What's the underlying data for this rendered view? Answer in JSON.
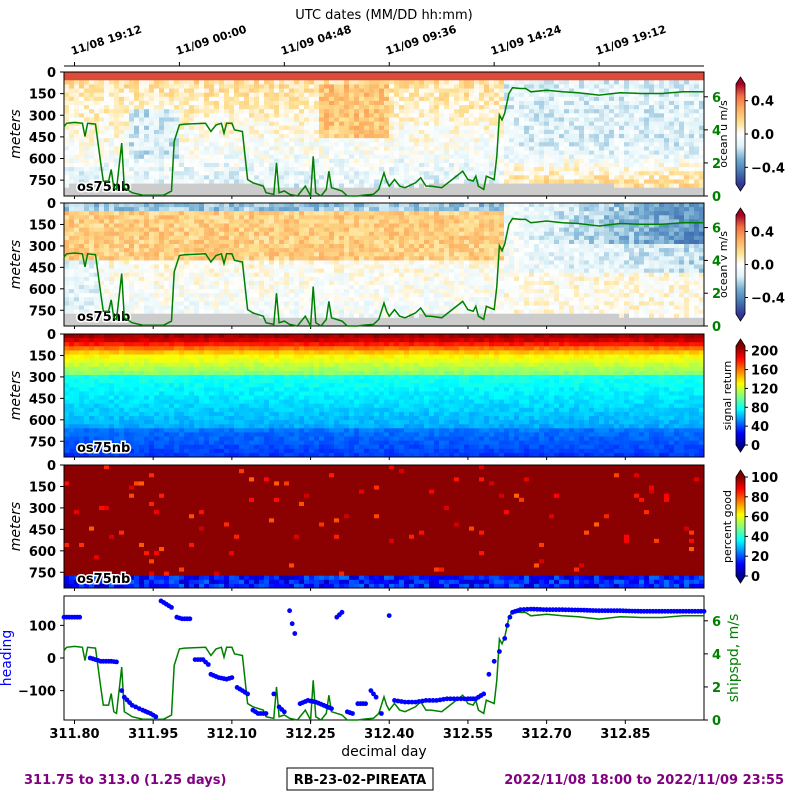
{
  "colors": {
    "purple": "#800080",
    "green": "#008000",
    "blue": "#0000ff",
    "gray": "#cccccc"
  },
  "footer": {
    "left_text": "311.75 to 313.0 (1.25 days)",
    "center_text": "RB-23-02-PIREATA",
    "right_text": "2022/11/08 18:00 to 2022/11/09 23:55"
  },
  "chart_data": {
    "type": "heatmap",
    "top_axis": {
      "title": "UTC dates (MM/DD hh:mm)",
      "ticks": [
        {
          "x": 311.8,
          "label": "11/08 19:12"
        },
        {
          "x": 312.0,
          "label": "11/09 00:00"
        },
        {
          "x": 312.2,
          "label": "11/09 04:48"
        },
        {
          "x": 312.4,
          "label": "11/09 09:36"
        },
        {
          "x": 312.6,
          "label": "11/09 14:24"
        },
        {
          "x": 312.8,
          "label": "11/09 19:12"
        }
      ]
    },
    "x_axis": {
      "label": "decimal day",
      "range": [
        311.78,
        313.0
      ],
      "ticks": [
        {
          "x": 311.8,
          "label": "311.80"
        },
        {
          "x": 311.95,
          "label": "311.95"
        },
        {
          "x": 312.1,
          "label": "312.10"
        },
        {
          "x": 312.25,
          "label": "312.25"
        },
        {
          "x": 312.4,
          "label": "312.40"
        },
        {
          "x": 312.55,
          "label": "312.55"
        },
        {
          "x": 312.7,
          "label": "312.70"
        },
        {
          "x": 312.85,
          "label": "312.85"
        }
      ]
    },
    "depth_axis": {
      "label": "meters",
      "range": [
        0,
        860
      ],
      "ticks": [
        {
          "v": 0,
          "label": "0"
        },
        {
          "v": 150,
          "label": "150"
        },
        {
          "v": 300,
          "label": "300"
        },
        {
          "v": 450,
          "label": "450"
        },
        {
          "v": 600,
          "label": "600"
        },
        {
          "v": 750,
          "label": "750"
        }
      ]
    },
    "instrument_label": "os75nb",
    "ship_speed_overlay": {
      "units": "m/s",
      "range": [
        0,
        7.5
      ],
      "points": [
        [
          311.78,
          4.2
        ],
        [
          311.785,
          4.4
        ],
        [
          311.8,
          4.45
        ],
        [
          311.815,
          4.4
        ],
        [
          311.82,
          3.6
        ],
        [
          311.825,
          4.4
        ],
        [
          311.84,
          4.35
        ],
        [
          311.85,
          2.0
        ],
        [
          311.855,
          0.9
        ],
        [
          311.865,
          0.9
        ],
        [
          311.87,
          1.6
        ],
        [
          311.875,
          0.5
        ],
        [
          311.88,
          0.4
        ],
        [
          311.89,
          3.2
        ],
        [
          311.895,
          0.5
        ],
        [
          311.91,
          0.2
        ],
        [
          311.93,
          0.05
        ],
        [
          311.97,
          0.05
        ],
        [
          311.985,
          0.3
        ],
        [
          311.99,
          3.3
        ],
        [
          312.0,
          4.3
        ],
        [
          312.01,
          4.35
        ],
        [
          312.05,
          4.4
        ],
        [
          312.06,
          3.9
        ],
        [
          312.07,
          4.3
        ],
        [
          312.08,
          4.4
        ],
        [
          312.085,
          3.8
        ],
        [
          312.09,
          4.4
        ],
        [
          312.1,
          4.4
        ],
        [
          312.105,
          4.0
        ],
        [
          312.12,
          3.9
        ],
        [
          312.13,
          1.0
        ],
        [
          312.14,
          0.8
        ],
        [
          312.16,
          0.6
        ],
        [
          312.165,
          0.2
        ],
        [
          312.18,
          0.1
        ],
        [
          312.185,
          2.0
        ],
        [
          312.19,
          0.2
        ],
        [
          312.2,
          0.3
        ],
        [
          312.21,
          0.1
        ],
        [
          312.225,
          0.0
        ],
        [
          312.24,
          0.6
        ],
        [
          312.25,
          0.0
        ],
        [
          312.255,
          2.4
        ],
        [
          312.26,
          0.2
        ],
        [
          312.27,
          0.0
        ],
        [
          312.28,
          0.4
        ],
        [
          312.285,
          1.5
        ],
        [
          312.29,
          0.5
        ],
        [
          312.31,
          0.3
        ],
        [
          312.32,
          0.0
        ],
        [
          312.34,
          0.0
        ],
        [
          312.35,
          0.05
        ],
        [
          312.37,
          0.1
        ],
        [
          312.38,
          0.4
        ],
        [
          312.39,
          1.4
        ],
        [
          312.395,
          0.9
        ],
        [
          312.4,
          0.6
        ],
        [
          312.41,
          1.0
        ],
        [
          312.42,
          0.6
        ],
        [
          312.43,
          0.5
        ],
        [
          312.45,
          0.8
        ],
        [
          312.46,
          1.1
        ],
        [
          312.47,
          0.6
        ],
        [
          312.48,
          0.6
        ],
        [
          312.5,
          0.5
        ],
        [
          312.52,
          1.0
        ],
        [
          312.54,
          1.5
        ],
        [
          312.55,
          1.0
        ],
        [
          312.56,
          0.9
        ],
        [
          312.565,
          1.2
        ],
        [
          312.57,
          0.6
        ],
        [
          312.58,
          0.4
        ],
        [
          312.585,
          1.2
        ],
        [
          312.6,
          1.0
        ],
        [
          312.605,
          2.4
        ],
        [
          312.61,
          4.9
        ],
        [
          312.615,
          4.6
        ],
        [
          312.62,
          5.0
        ],
        [
          312.628,
          6.2
        ],
        [
          312.635,
          6.55
        ],
        [
          312.65,
          6.5
        ],
        [
          312.66,
          6.5
        ],
        [
          312.67,
          6.3
        ],
        [
          312.7,
          6.4
        ],
        [
          312.73,
          6.3
        ],
        [
          312.76,
          6.25
        ],
        [
          312.8,
          6.1
        ],
        [
          312.84,
          6.25
        ],
        [
          312.88,
          6.2
        ],
        [
          312.92,
          6.2
        ],
        [
          312.96,
          6.3
        ],
        [
          313.0,
          6.3
        ]
      ]
    },
    "panels": [
      {
        "name": "ocean u",
        "colorbar_label": "ocean u m/s",
        "colormap": "rdylbu_r",
        "value_range": [
          -0.6,
          0.6
        ],
        "colorbar_ticks": [
          {
            "v": 0.4,
            "label": "0.4"
          },
          {
            "v": 0.0,
            "label": "0.0"
          },
          {
            "v": -0.4,
            "label": "−0.4"
          }
        ],
        "speed_axis_ticks": [
          {
            "v": 0,
            "label": "0"
          },
          {
            "v": 2,
            "label": "2"
          },
          {
            "v": 4,
            "label": "4"
          },
          {
            "v": 6,
            "label": "6"
          }
        ]
      },
      {
        "name": "ocean v",
        "colorbar_label": "ocean v m/s",
        "colormap": "rdylbu_r",
        "value_range": [
          -0.6,
          0.6
        ],
        "colorbar_ticks": [
          {
            "v": 0.4,
            "label": "0.4"
          },
          {
            "v": 0.0,
            "label": "0.0"
          },
          {
            "v": -0.4,
            "label": "−0.4"
          }
        ],
        "speed_axis_ticks": [
          {
            "v": 0,
            "label": "0"
          },
          {
            "v": 2,
            "label": "2"
          },
          {
            "v": 4,
            "label": "4"
          },
          {
            "v": 6,
            "label": "6"
          }
        ]
      },
      {
        "name": "signal return",
        "colorbar_label": "signal return",
        "colormap": "jet",
        "value_range": [
          0,
          210
        ],
        "colorbar_ticks": [
          {
            "v": 0,
            "label": "0"
          },
          {
            "v": 40,
            "label": "40"
          },
          {
            "v": 80,
            "label": "80"
          },
          {
            "v": 120,
            "label": "120"
          },
          {
            "v": 160,
            "label": "160"
          },
          {
            "v": 200,
            "label": "200"
          }
        ]
      },
      {
        "name": "percent good",
        "colorbar_label": "percent good",
        "colormap": "jet",
        "value_range": [
          0,
          100
        ],
        "colorbar_ticks": [
          {
            "v": 0,
            "label": "0"
          },
          {
            "v": 20,
            "label": "20"
          },
          {
            "v": 40,
            "label": "40"
          },
          {
            "v": 60,
            "label": "60"
          },
          {
            "v": 80,
            "label": "80"
          },
          {
            "v": 100,
            "label": "100"
          }
        ]
      }
    ],
    "heading_panel": {
      "ylabel_left": "heading",
      "ylabel_right": "shipspd, m/s",
      "heading_range": [
        -190,
        190
      ],
      "heading_ticks": [
        {
          "v": 100,
          "label": "100"
        },
        {
          "v": 0,
          "label": "0"
        },
        {
          "v": -100,
          "label": "−100"
        }
      ],
      "speed_range": [
        0,
        7.5
      ],
      "speed_ticks": [
        {
          "v": 0,
          "label": "0"
        },
        {
          "v": 2,
          "label": "2"
        },
        {
          "v": 4,
          "label": "4"
        },
        {
          "v": 6,
          "label": "6"
        }
      ],
      "heading_points": [
        [
          311.78,
          125
        ],
        [
          311.79,
          125
        ],
        [
          311.8,
          125
        ],
        [
          311.81,
          125
        ],
        [
          311.83,
          0
        ],
        [
          311.84,
          -5
        ],
        [
          311.85,
          -10
        ],
        [
          311.86,
          -10
        ],
        [
          311.87,
          -10
        ],
        [
          311.88,
          -12
        ],
        [
          311.89,
          -100
        ],
        [
          311.895,
          -120
        ],
        [
          311.91,
          -145
        ],
        [
          311.93,
          -160
        ],
        [
          311.945,
          -170
        ],
        [
          311.955,
          -180
        ],
        [
          311.965,
          175
        ],
        [
          311.975,
          165
        ],
        [
          311.985,
          155
        ],
        [
          311.995,
          125
        ],
        [
          312.005,
          120
        ],
        [
          312.02,
          120
        ],
        [
          312.03,
          -5
        ],
        [
          312.045,
          -5
        ],
        [
          312.055,
          -20
        ],
        [
          312.06,
          -50
        ],
        [
          312.075,
          -60
        ],
        [
          312.09,
          -65
        ],
        [
          312.1,
          -60
        ],
        [
          312.11,
          -90
        ],
        [
          312.12,
          -100
        ],
        [
          312.13,
          -110
        ],
        [
          312.14,
          -160
        ],
        [
          312.15,
          -170
        ],
        [
          312.165,
          -170
        ],
        [
          312.18,
          -110
        ],
        [
          312.19,
          -150
        ],
        [
          312.2,
          -165
        ],
        [
          312.21,
          145
        ],
        [
          312.215,
          105
        ],
        [
          312.22,
          75
        ],
        [
          312.23,
          -140
        ],
        [
          312.245,
          -130
        ],
        [
          312.26,
          -135
        ],
        [
          312.275,
          -145
        ],
        [
          312.29,
          -155
        ],
        [
          312.3,
          125
        ],
        [
          312.31,
          140
        ],
        [
          312.32,
          -165
        ],
        [
          312.33,
          -170
        ],
        [
          312.34,
          -140
        ],
        [
          312.355,
          -140
        ],
        [
          312.365,
          -100
        ],
        [
          312.375,
          -120
        ],
        [
          312.385,
          -170
        ],
        [
          312.4,
          130
        ],
        [
          312.41,
          -130
        ],
        [
          312.43,
          -135
        ],
        [
          312.45,
          -135
        ],
        [
          312.47,
          -130
        ],
        [
          312.49,
          -130
        ],
        [
          312.51,
          -125
        ],
        [
          312.53,
          -125
        ],
        [
          312.55,
          -125
        ],
        [
          312.565,
          -125
        ],
        [
          312.58,
          -110
        ],
        [
          312.59,
          -50
        ],
        [
          312.6,
          -10
        ],
        [
          312.61,
          20
        ],
        [
          312.62,
          60
        ],
        [
          312.625,
          100
        ],
        [
          312.63,
          125
        ],
        [
          312.635,
          140
        ],
        [
          312.65,
          148
        ],
        [
          312.67,
          150
        ],
        [
          312.7,
          148
        ],
        [
          312.73,
          148
        ],
        [
          312.76,
          147
        ],
        [
          312.8,
          145
        ],
        [
          312.84,
          145
        ],
        [
          312.88,
          143
        ],
        [
          312.92,
          143
        ],
        [
          312.96,
          143
        ],
        [
          313.0,
          143
        ]
      ]
    }
  }
}
